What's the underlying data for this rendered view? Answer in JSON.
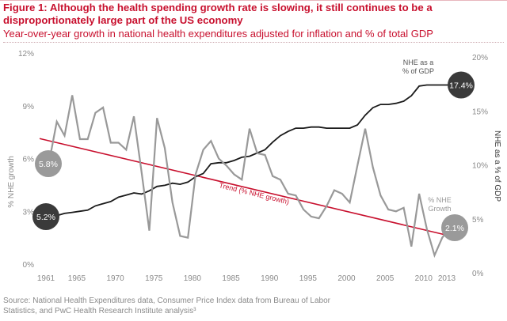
{
  "header": {
    "title": "Figure 1: Although the health spending growth rate is slowing, it still continues to be a disproportionately large part of the US economy",
    "subtitle": "Year-over-year growth in national health expenditures adjusted for inflation and % of total GDP"
  },
  "source": "Source: National Health Expenditures data, Consumer Price Index data from Bureau of Labor Statistics, and PwC Health Research Institute analysis³",
  "colors": {
    "title": "#c8102e",
    "nhe_growth": "#999999",
    "nhe_gdp": "#1a1a1a",
    "trend": "#c8102e",
    "circle_dark": "#3a3a3a",
    "circle_gray": "#9a9a9a"
  },
  "chart_data": {
    "type": "line",
    "title": "Year-over-year growth in national health expenditures adjusted for inflation and % of total GDP",
    "xlabel": "",
    "ylabel": "% NHE growth",
    "ylabel_right": "NHE as a % of GDP",
    "x_ticks": [
      "1961",
      "1965",
      "1970",
      "1975",
      "1980",
      "1985",
      "1990",
      "1995",
      "2000",
      "2005",
      "2010",
      "2013"
    ],
    "x_tick_years": [
      1961,
      1965,
      1970,
      1975,
      1980,
      1985,
      1990,
      1995,
      2000,
      2005,
      2010,
      2013
    ],
    "y_left": {
      "ticks": [
        "0%",
        "3%",
        "6%",
        "9%",
        "12%"
      ],
      "range": [
        0,
        12
      ]
    },
    "y_right": {
      "ticks": [
        "0%",
        "5%",
        "10%",
        "15%",
        "20%"
      ],
      "range": [
        0,
        20
      ]
    },
    "x": [
      1961,
      1962,
      1963,
      1964,
      1965,
      1966,
      1967,
      1968,
      1969,
      1970,
      1971,
      1972,
      1973,
      1974,
      1975,
      1976,
      1977,
      1978,
      1979,
      1980,
      1981,
      1982,
      1983,
      1984,
      1985,
      1986,
      1987,
      1988,
      1989,
      1990,
      1991,
      1992,
      1993,
      1994,
      1995,
      1996,
      1997,
      1998,
      1999,
      2000,
      2001,
      2002,
      2003,
      2004,
      2005,
      2006,
      2007,
      2008,
      2009,
      2010,
      2011,
      2012,
      2013
    ],
    "series": [
      {
        "name": "% NHE Growth",
        "axis": "left",
        "values": [
          5.8,
          8.1,
          7.3,
          9.6,
          7.1,
          7.1,
          8.6,
          8.9,
          6.9,
          6.9,
          6.5,
          8.4,
          5.2,
          1.9,
          8.3,
          6.6,
          3.5,
          1.6,
          1.5,
          5.1,
          6.5,
          7.0,
          6.0,
          5.6,
          5.1,
          4.8,
          7.7,
          6.3,
          6.2,
          5.0,
          4.8,
          4.0,
          3.9,
          3.1,
          2.7,
          2.6,
          3.3,
          4.2,
          4.0,
          3.5,
          5.6,
          7.7,
          5.5,
          3.9,
          3.1,
          3.0,
          3.2,
          1.0,
          4.0,
          2.0,
          0.5,
          1.5,
          2.1
        ]
      },
      {
        "name": "NHE as a % of GDP",
        "axis": "right",
        "values": [
          5.2,
          5.3,
          5.5,
          5.6,
          5.7,
          5.8,
          6.2,
          6.4,
          6.6,
          7.0,
          7.2,
          7.4,
          7.3,
          7.6,
          8.0,
          8.1,
          8.3,
          8.2,
          8.4,
          8.9,
          9.2,
          10.1,
          10.2,
          10.2,
          10.4,
          10.7,
          10.8,
          11.1,
          11.4,
          12.1,
          12.7,
          13.1,
          13.4,
          13.4,
          13.5,
          13.5,
          13.4,
          13.4,
          13.4,
          13.4,
          13.7,
          14.6,
          15.3,
          15.6,
          15.6,
          15.7,
          15.9,
          16.4,
          17.3,
          17.4,
          17.4,
          17.4,
          17.4
        ]
      }
    ],
    "trend": {
      "name": "Trend (% NHE growth)",
      "axis": "left",
      "start": [
        1961,
        7.0
      ],
      "end": [
        2013,
        1.6
      ]
    },
    "annotations": [
      {
        "label": "5.8%",
        "series": "% NHE Growth",
        "year": 1961
      },
      {
        "label": "5.2%",
        "series": "NHE as a % of GDP",
        "year": 1961
      },
      {
        "label": "17.4%",
        "series": "NHE as a % of GDP",
        "year": 2013
      },
      {
        "label": "2.1%",
        "series": "% NHE Growth",
        "year": 2013
      },
      {
        "label": "NHE as a % of GDP",
        "lines": [
          "NHE as a",
          "% of GDP"
        ]
      },
      {
        "label": "% NHE Growth",
        "lines": [
          "% NHE",
          "Growth"
        ]
      },
      {
        "label": "Trend (% NHE growth)"
      }
    ],
    "grid": false,
    "legend": "none"
  }
}
